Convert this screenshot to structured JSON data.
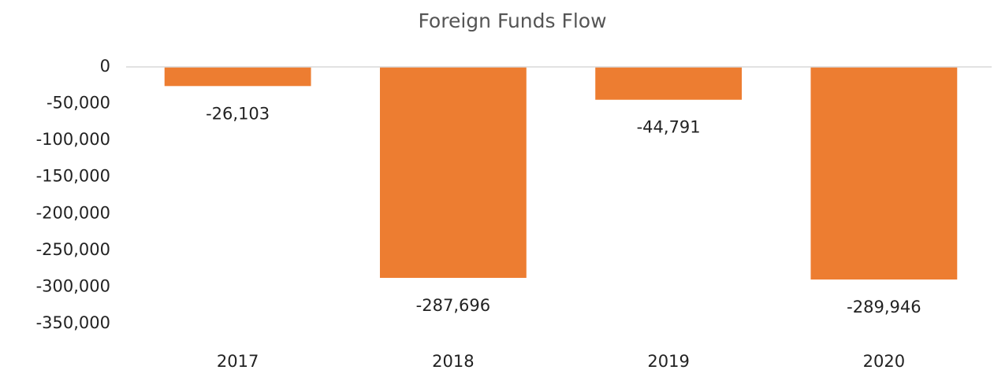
{
  "chart_data": {
    "type": "bar",
    "title": "Foreign Funds Flow",
    "categories": [
      "2017",
      "2018",
      "2019",
      "2020"
    ],
    "values": [
      -26103,
      -287696,
      -44791,
      -289946
    ],
    "value_labels": [
      "-26,103",
      "-287,696",
      "-44,791",
      "-289,946"
    ],
    "color": "#ed7d31",
    "ylim": [
      -350000,
      0
    ],
    "yticks": [
      0,
      {
        "value": -50000,
        "label": "-50,000"
      },
      {
        "value": -100000,
        "label": "-100,000"
      },
      {
        "value": -150000,
        "label": "-150,000"
      },
      {
        "value": -200000,
        "label": "-200,000"
      },
      {
        "value": -250000,
        "label": "-250,000"
      },
      {
        "value": -300000,
        "label": "-300,000"
      },
      {
        "value": -350000,
        "label": "-350,000"
      }
    ],
    "grid": false
  }
}
